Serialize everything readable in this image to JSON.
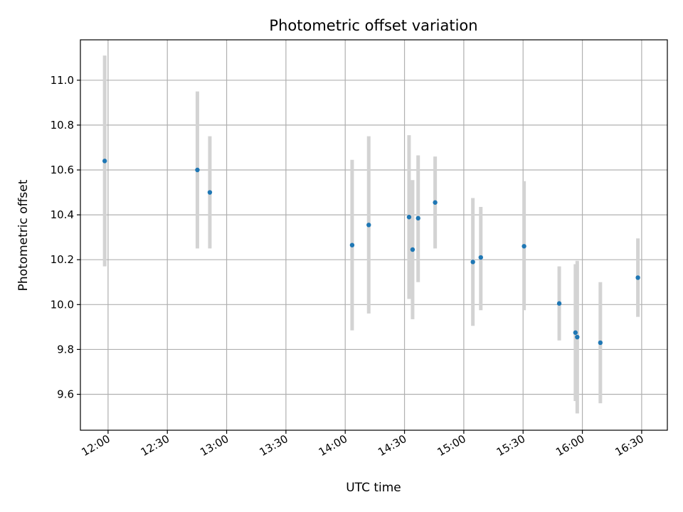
{
  "chart_data": {
    "type": "scatter",
    "title": "Photometric offset variation",
    "xlabel": "UTC time",
    "ylabel": "Photometric offset",
    "x_ticks": [
      "12:00",
      "12:30",
      "13:00",
      "13:30",
      "14:00",
      "14:30",
      "15:00",
      "15:30",
      "16:00",
      "16:30"
    ],
    "x_tick_minutes": [
      720,
      750,
      780,
      810,
      840,
      870,
      900,
      930,
      960,
      990
    ],
    "y_ticks": [
      "9.6",
      "9.8",
      "10.0",
      "10.2",
      "10.4",
      "10.6",
      "10.8",
      "11.0"
    ],
    "y_tick_values": [
      9.6,
      9.8,
      10.0,
      10.2,
      10.4,
      10.6,
      10.8,
      11.0
    ],
    "xlim": [
      706,
      1003
    ],
    "ylim": [
      9.44,
      11.18
    ],
    "grid": true,
    "point_color": "#1f77b4",
    "errorbar_color": "#d3d3d3",
    "points": [
      {
        "time": "11:58",
        "minutes": 718.3,
        "y": 10.64,
        "lo": 10.17,
        "hi": 11.11
      },
      {
        "time": "12:45",
        "minutes": 765.2,
        "y": 10.6,
        "lo": 10.25,
        "hi": 10.95
      },
      {
        "time": "12:51",
        "minutes": 771.5,
        "y": 10.5,
        "lo": 10.25,
        "hi": 10.75
      },
      {
        "time": "14:03",
        "minutes": 843.5,
        "y": 10.265,
        "lo": 9.885,
        "hi": 10.645
      },
      {
        "time": "14:12",
        "minutes": 851.9,
        "y": 10.355,
        "lo": 9.96,
        "hi": 10.75
      },
      {
        "time": "14:32",
        "minutes": 872.3,
        "y": 10.39,
        "lo": 10.025,
        "hi": 10.755
      },
      {
        "time": "14:34",
        "minutes": 874.1,
        "y": 10.245,
        "lo": 9.935,
        "hi": 10.555
      },
      {
        "time": "14:37",
        "minutes": 876.9,
        "y": 10.385,
        "lo": 10.1,
        "hi": 10.665
      },
      {
        "time": "14:45",
        "minutes": 885.5,
        "y": 10.455,
        "lo": 10.25,
        "hi": 10.66
      },
      {
        "time": "15:04",
        "minutes": 904.6,
        "y": 10.19,
        "lo": 9.905,
        "hi": 10.475
      },
      {
        "time": "15:08",
        "minutes": 908.6,
        "y": 10.21,
        "lo": 9.975,
        "hi": 10.435
      },
      {
        "time": "15:30",
        "minutes": 930.5,
        "y": 10.26,
        "lo": 9.975,
        "hi": 10.55
      },
      {
        "time": "15:48",
        "minutes": 948.3,
        "y": 10.005,
        "lo": 9.84,
        "hi": 10.17
      },
      {
        "time": "15:56",
        "minutes": 956.5,
        "y": 9.875,
        "lo": 9.57,
        "hi": 10.18
      },
      {
        "time": "15:57",
        "minutes": 957.4,
        "y": 9.855,
        "lo": 9.515,
        "hi": 10.195
      },
      {
        "time": "16:09",
        "minutes": 969.1,
        "y": 9.83,
        "lo": 9.56,
        "hi": 10.1
      },
      {
        "time": "16:28",
        "minutes": 988.1,
        "y": 10.12,
        "lo": 9.945,
        "hi": 10.295
      }
    ]
  }
}
